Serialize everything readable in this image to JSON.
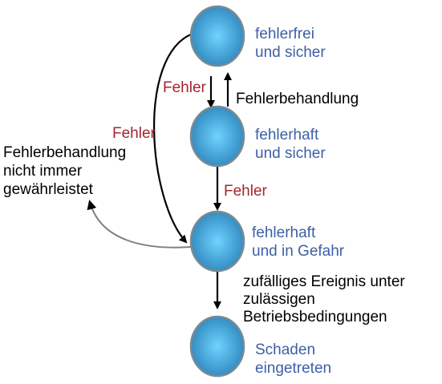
{
  "colors": {
    "state_text": "#3d5fa6",
    "error_text": "#a5252f",
    "node_fill_light": "#6fd3ff",
    "node_fill_dark": "#2e86bc",
    "node_stroke": "#7a8a93",
    "arrow_black": "#000000",
    "arrow_gray": "#808080"
  },
  "states": [
    {
      "id": "s1",
      "line1": "fehlerfrei",
      "line2": "und sicher"
    },
    {
      "id": "s2",
      "line1": "fehlerhaft",
      "line2": "und sicher"
    },
    {
      "id": "s3",
      "line1": "fehlerhaft",
      "line2": "und in Gefahr"
    },
    {
      "id": "s4",
      "line1": "Schaden",
      "line2": "eingetreten"
    }
  ],
  "transitions": {
    "fehler_s1_s2": "Fehler",
    "fehlerbehandlung_s2_s1": "Fehlerbehandlung",
    "fehler_s1_s3": "Fehler",
    "fehler_s2_s3": "Fehler",
    "zufall": {
      "line1": "zufälliges Ereignis unter",
      "line2": "zulässigen",
      "line3": "Betriebsbedingungen"
    },
    "fehlerbehandlung_nicht": {
      "line1": "Fehlerbehandlung",
      "line2": "nicht immer",
      "line3": "gewährleistet"
    }
  }
}
